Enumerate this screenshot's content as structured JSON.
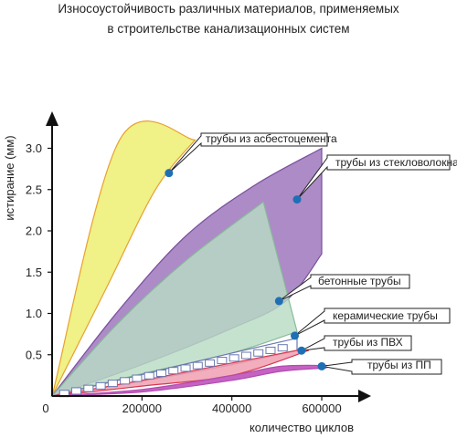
{
  "chart_data": {
    "type": "area",
    "title": "Износоустойчивость различных материалов, применяемых",
    "subtitle": "в строительстве канализационных систем",
    "xlabel": "количество циклов",
    "ylabel": "истирание (мм)",
    "xlim": [
      0,
      700000
    ],
    "ylim": [
      0,
      3.3
    ],
    "x_ticks": [
      "0",
      "200000",
      "400000",
      "600000"
    ],
    "x_tick_values": [
      0,
      200000,
      400000,
      600000
    ],
    "y_ticks": [
      "3.0",
      "2.5",
      "2.0",
      "1.5",
      "1.0",
      "0.5"
    ],
    "y_tick_values": [
      3.0,
      2.5,
      2.0,
      1.5,
      1.0,
      0.5
    ],
    "grid": false,
    "series": [
      {
        "name": "трубы из асбестоцемента",
        "color": "#eef07a",
        "stroke": "#e8a030",
        "upper": [
          [
            0,
            0
          ],
          [
            150000,
            3.1
          ],
          [
            318000,
            3.1
          ]
        ],
        "lower": [
          [
            0,
            0
          ],
          [
            120000,
            1.3
          ],
          [
            230000,
            2.5
          ],
          [
            318000,
            3.1
          ]
        ],
        "marker": [
          260000,
          2.7
        ]
      },
      {
        "name": "трубы из стекловолокна",
        "color": "#a17bbf",
        "stroke": "#7a4f9c",
        "upper": [
          [
            0,
            0
          ],
          [
            150000,
            1.05
          ],
          [
            300000,
            1.95
          ],
          [
            450000,
            2.55
          ],
          [
            600000,
            3.0
          ]
        ],
        "lower": [
          [
            0,
            0
          ],
          [
            200000,
            0.38
          ],
          [
            400000,
            0.82
          ],
          [
            520000,
            1.15
          ],
          [
            600000,
            1.72
          ]
        ],
        "marker": [
          545000,
          2.38
        ]
      },
      {
        "name": "бетонные трубы",
        "color": "#b8dcc4",
        "stroke": "#88bb99",
        "upper": [
          [
            0,
            0
          ],
          [
            150000,
            0.9
          ],
          [
            300000,
            1.65
          ],
          [
            470000,
            2.35
          ]
        ],
        "lower": [
          [
            0,
            0
          ],
          [
            200000,
            0.27
          ],
          [
            400000,
            0.52
          ],
          [
            545000,
            0.78
          ]
        ],
        "marker": [
          505000,
          1.15
        ]
      },
      {
        "name": "керамические трубы",
        "color": "#ffffff",
        "stroke": "#6a78b0",
        "upper": [
          [
            0,
            0
          ],
          [
            200000,
            0.26
          ],
          [
            400000,
            0.52
          ],
          [
            545000,
            0.7
          ]
        ],
        "lower": [
          [
            0,
            0
          ],
          [
            200000,
            0.18
          ],
          [
            400000,
            0.38
          ],
          [
            545000,
            0.55
          ]
        ],
        "marker": [
          540000,
          0.73
        ]
      },
      {
        "name": "трубы из ПВХ",
        "color": "#f0a0b0",
        "stroke": "#d9364f",
        "upper": [
          [
            0,
            0
          ],
          [
            200000,
            0.19
          ],
          [
            400000,
            0.4
          ],
          [
            570000,
            0.58
          ]
        ],
        "lower": [
          [
            0,
            0
          ],
          [
            200000,
            0.12
          ],
          [
            400000,
            0.25
          ],
          [
            570000,
            0.55
          ]
        ],
        "marker": [
          555000,
          0.55
        ]
      },
      {
        "name": "трубы из ПП",
        "color": "#c25bbf",
        "stroke": "#b24cb0",
        "upper": [
          [
            0,
            0
          ],
          [
            200000,
            0.08
          ],
          [
            400000,
            0.25
          ],
          [
            510000,
            0.36
          ],
          [
            610000,
            0.37
          ]
        ],
        "lower": [
          [
            0,
            0
          ],
          [
            200000,
            0.05
          ],
          [
            400000,
            0.19
          ],
          [
            510000,
            0.3
          ],
          [
            610000,
            0.34
          ]
        ],
        "marker": [
          600000,
          0.36
        ]
      }
    ]
  }
}
